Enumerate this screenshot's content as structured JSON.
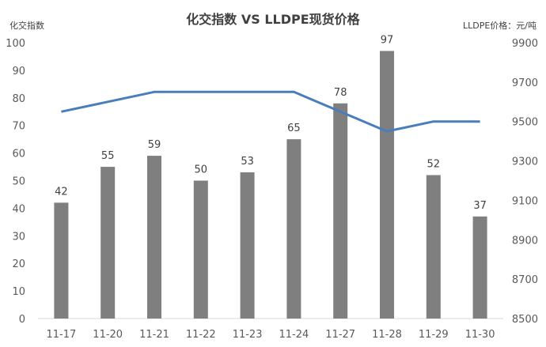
{
  "chart_data": {
    "type": "bar",
    "title": "化交指数 VS LLDPE现货价格",
    "ylabel": "化交指数",
    "y2label": "LLDPE价格：元/吨",
    "categories": [
      "11-17",
      "11-20",
      "11-21",
      "11-22",
      "11-23",
      "11-24",
      "11-27",
      "11-28",
      "11-29",
      "11-30"
    ],
    "ylim": [
      0,
      100
    ],
    "yticks": [
      0,
      10,
      20,
      30,
      40,
      50,
      60,
      70,
      80,
      90,
      100
    ],
    "y2lim": [
      8500,
      9900
    ],
    "y2ticks": [
      8500,
      8700,
      8900,
      9100,
      9300,
      9500,
      9700,
      9900
    ],
    "grid": false,
    "legend": "none",
    "series": [
      {
        "type": "bar",
        "axis": "left",
        "color": "#7f7f7f",
        "values": [
          42,
          55,
          59,
          50,
          53,
          65,
          78,
          97,
          52,
          37
        ]
      },
      {
        "type": "line",
        "axis": "right",
        "color": "#4a7ebb",
        "values": [
          9550,
          9600,
          9650,
          9650,
          9650,
          9650,
          9550,
          9450,
          9500,
          9500
        ]
      }
    ]
  }
}
